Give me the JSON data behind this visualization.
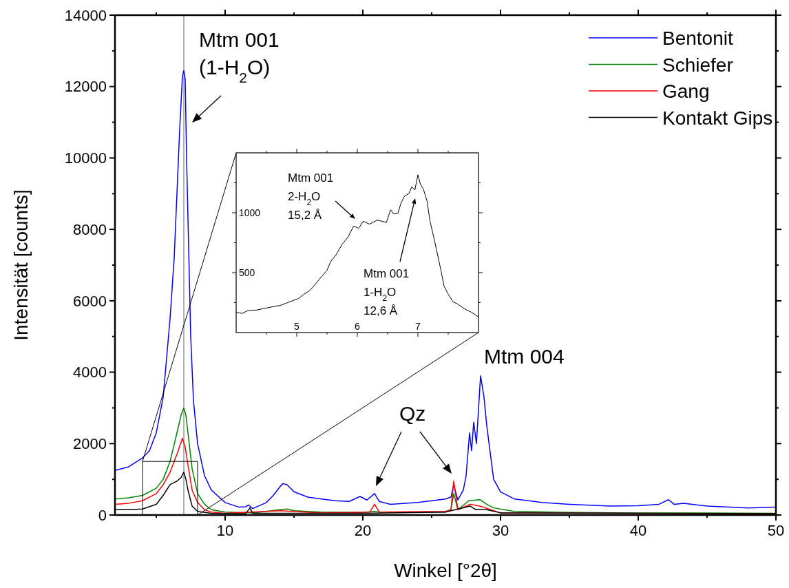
{
  "chart_data": [
    {
      "type": "line",
      "xlabel": "Winkel [°2θ]",
      "ylabel": "Intensität [counts]",
      "xlim": [
        2,
        50
      ],
      "ylim": [
        0,
        14000
      ],
      "xticks": [
        {
          "value": 5,
          "label": null
        },
        10,
        {
          "value": 15,
          "label": null
        },
        20,
        {
          "value": 25,
          "label": null
        },
        30,
        {
          "value": 35,
          "label": null
        },
        40,
        {
          "value": 45,
          "label": null
        },
        50
      ],
      "yticks": [
        0,
        {
          "value": 1000,
          "label": null
        },
        2000,
        {
          "value": 3000,
          "label": null
        },
        4000,
        {
          "value": 5000,
          "label": null
        },
        6000,
        {
          "value": 7000,
          "label": null
        },
        8000,
        {
          "value": 9000,
          "label": null
        },
        10000,
        {
          "value": 11000,
          "label": null
        },
        12000,
        {
          "value": 13000,
          "label": null
        },
        14000
      ],
      "legend": "top right",
      "grid": false,
      "marker": "none",
      "line_style": "solid",
      "ref_lines": [
        {
          "axis": "x",
          "value": 7,
          "color": "#999999"
        }
      ],
      "annotations": [
        "Mtm 001\n(1-H$_{2}$O)",
        "Mtm 004",
        "Qz"
      ],
      "series": [
        {
          "name": "Bentonit",
          "color": "#0000ff",
          "x": [
            2,
            3,
            4,
            4.5,
            5,
            5.5,
            6,
            6.3,
            6.5,
            6.7,
            6.9,
            7,
            7.1,
            7.2,
            7.35,
            7.5,
            7.7,
            8,
            8.5,
            9,
            10,
            11,
            11.5,
            11.7,
            12,
            13,
            13.5,
            14,
            14.2,
            14.5,
            15,
            16,
            17,
            18,
            19,
            19.8,
            20.3,
            20.85,
            21.2,
            22,
            24,
            26,
            26.4,
            26.6,
            26.9,
            27.3,
            27.5,
            27.75,
            27.9,
            28.05,
            28.25,
            28.55,
            28.8,
            29,
            29.5,
            30,
            31,
            33,
            35,
            38,
            40,
            41.5,
            42.2,
            42.6,
            43.3,
            45,
            48,
            50
          ],
          "values": [
            1250,
            1350,
            1600,
            1800,
            2300,
            3300,
            5500,
            7200,
            9000,
            10800,
            12300,
            12450,
            12200,
            10000,
            7500,
            5000,
            3200,
            2000,
            1100,
            700,
            350,
            220,
            230,
            280,
            180,
            350,
            550,
            800,
            880,
            850,
            650,
            500,
            450,
            400,
            380,
            520,
            420,
            600,
            380,
            300,
            350,
            450,
            500,
            850,
            420,
            700,
            1100,
            2300,
            1800,
            2600,
            2000,
            3900,
            3300,
            2500,
            1000,
            650,
            450,
            350,
            300,
            250,
            260,
            300,
            430,
            300,
            330,
            250,
            200,
            220
          ]
        },
        {
          "name": "Schiefer",
          "color": "#008000",
          "x": [
            2,
            3,
            4,
            5,
            5.5,
            6,
            6.5,
            6.8,
            7,
            7.15,
            7.3,
            7.6,
            8,
            8.5,
            9,
            10,
            12,
            14,
            14.5,
            15,
            17,
            20,
            20.85,
            21.2,
            22,
            26,
            26.4,
            26.6,
            26.9,
            27.7,
            28.5,
            29,
            29.5,
            31,
            35,
            40,
            50
          ],
          "values": [
            450,
            480,
            550,
            750,
            1000,
            1500,
            2300,
            2800,
            3000,
            2800,
            2300,
            1300,
            600,
            300,
            150,
            80,
            60,
            150,
            170,
            120,
            80,
            70,
            100,
            80,
            80,
            80,
            150,
            600,
            150,
            400,
            430,
            300,
            200,
            100,
            70,
            60,
            50
          ]
        },
        {
          "name": "Gang",
          "color": "#ff0000",
          "x": [
            2,
            3,
            4,
            5,
            5.5,
            6,
            6.5,
            6.9,
            7.1,
            7.3,
            7.6,
            8,
            8.5,
            9,
            10,
            14,
            17,
            20.5,
            20.85,
            21.2,
            26,
            26.4,
            26.6,
            26.9,
            27.8,
            28.5,
            30,
            50
          ],
          "values": [
            300,
            330,
            400,
            600,
            850,
            1200,
            1700,
            2150,
            1900,
            1400,
            700,
            350,
            150,
            80,
            50,
            120,
            60,
            80,
            300,
            80,
            100,
            150,
            950,
            150,
            300,
            250,
            60,
            30
          ]
        },
        {
          "name": "Kontakt Gips",
          "color": "#000000",
          "x": [
            2,
            3,
            4,
            5,
            5.5,
            6,
            6.5,
            6.8,
            7,
            7.15,
            7.3,
            7.6,
            8,
            9,
            11.5,
            11.8,
            12,
            20,
            26,
            27.8,
            28.2,
            29,
            30,
            50
          ],
          "values": [
            150,
            150,
            170,
            300,
            550,
            850,
            950,
            1050,
            1200,
            1000,
            700,
            250,
            100,
            50,
            40,
            200,
            50,
            50,
            80,
            250,
            150,
            150,
            60,
            40
          ]
        }
      ]
    },
    {
      "type": "line",
      "xlim": [
        4,
        8
      ],
      "ylim": [
        0,
        1500
      ],
      "xticks": [
        {
          "value": 4.5,
          "label": null
        },
        5,
        {
          "value": 5.5,
          "label": null
        },
        6,
        {
          "value": 6.5,
          "label": null
        },
        7,
        {
          "value": 7.5,
          "label": null
        }
      ],
      "yticks": [
        {
          "value": 250,
          "label": null
        },
        500,
        {
          "value": 750,
          "label": null
        },
        1000,
        {
          "value": 1250,
          "label": null
        }
      ],
      "grid": false,
      "marker": "none",
      "line_style": "solid",
      "annotations": [
        "Mtm 001\n2-H$_{2}$O\n15,2 Å",
        "Mtm 001\n1-H$_{2}$O\n12,6 Å"
      ],
      "series": [
        {
          "color": "#000000",
          "x": [
            4,
            4.1,
            4.2,
            4.34,
            4.45,
            4.6,
            4.73,
            4.85,
            5.03,
            5.12,
            5.22,
            5.3,
            5.41,
            5.5,
            5.56,
            5.65,
            5.75,
            5.85,
            5.94,
            6.02,
            6.1,
            6.2,
            6.33,
            6.4,
            6.48,
            6.55,
            6.6,
            6.67,
            6.72,
            6.78,
            6.85,
            6.9,
            6.95,
            7,
            7.04,
            7.09,
            7.15,
            7.2,
            7.26,
            7.32,
            7.38,
            7.43,
            7.5,
            7.58,
            7.65,
            7.77,
            7.88,
            8
          ],
          "values": [
            169,
            160,
            185,
            188,
            200,
            215,
            227,
            250,
            285,
            320,
            352,
            400,
            467,
            520,
            592,
            650,
            737,
            800,
            890,
            870,
            929,
            905,
            938,
            930,
            919,
            1025,
            990,
            996,
            1080,
            1140,
            1160,
            1217,
            1190,
            1317,
            1240,
            1198,
            1100,
            929,
            800,
            660,
            520,
            390,
            320,
            256,
            240,
            198,
            170,
            131
          ]
        }
      ]
    }
  ]
}
